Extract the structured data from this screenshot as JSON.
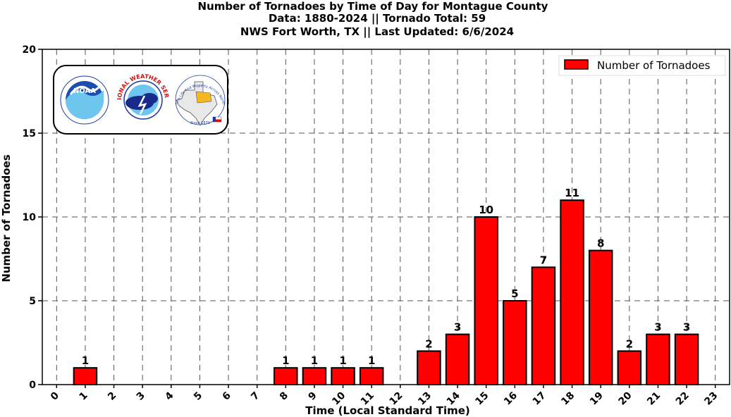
{
  "title": {
    "line1": "Number of Tornadoes by Time of Day for Montague County",
    "line2": "Data: 1880-2024 || Tornado Total: 59",
    "line3": "NWS Fort Worth, TX || Last Updated: 6/6/2024"
  },
  "logos": {
    "noaa_text": "NOAA",
    "nws_text": "NATIONAL WEATHER SERVICE",
    "tx_motto": "Protecting Life And Property Across North Texas",
    "tx_since": "Since 1870"
  },
  "colors": {
    "bar": "#ff0000",
    "bar_edge": "#000000",
    "grid": "#555555"
  },
  "chart_data": {
    "type": "bar",
    "title": "Number of Tornadoes by Time of Day for Montague County",
    "xlabel": "Time (Local Standard Time)",
    "ylabel": "Number of Tornadoes",
    "categories": [
      "0",
      "1",
      "2",
      "3",
      "4",
      "5",
      "6",
      "7",
      "8",
      "9",
      "10",
      "11",
      "12",
      "13",
      "14",
      "15",
      "16",
      "17",
      "18",
      "19",
      "20",
      "21",
      "22",
      "23"
    ],
    "series": [
      {
        "name": "Number of Tornadoes",
        "values": [
          0,
          1,
          0,
          0,
          0,
          0,
          0,
          0,
          1,
          1,
          1,
          1,
          0,
          2,
          3,
          10,
          5,
          7,
          11,
          8,
          2,
          3,
          3,
          0
        ]
      }
    ],
    "ylim": [
      0,
      20
    ],
    "yticks": [
      0,
      5,
      10,
      15,
      20
    ],
    "grid": true,
    "grid_style": "dashed",
    "legend": "top-right",
    "data_labels_shown_for_nonzero": true
  }
}
